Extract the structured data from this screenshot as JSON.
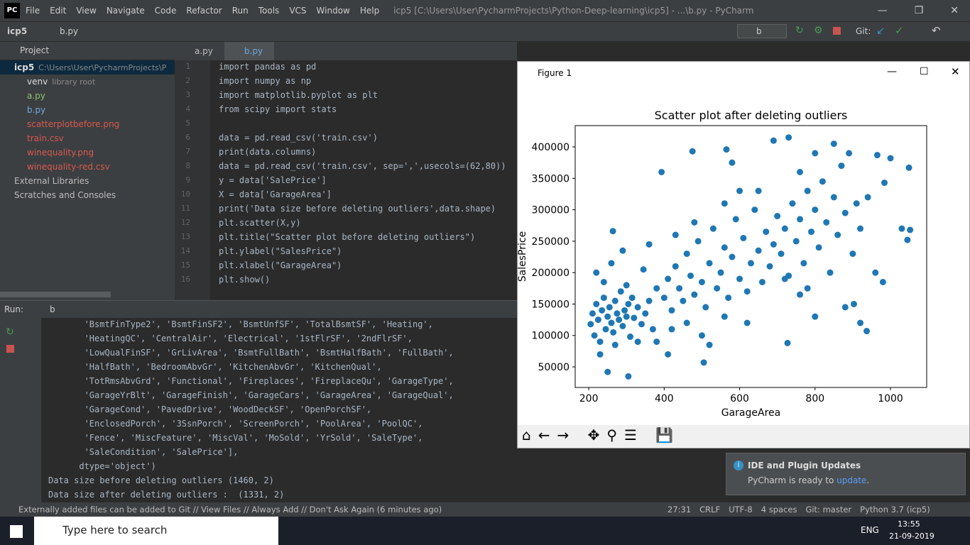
{
  "title_bar": {
    "menus": [
      "File",
      "Edit",
      "View",
      "Navigate",
      "Code",
      "Refactor",
      "Run",
      "Tools",
      "VCS",
      "Window",
      "Help"
    ],
    "title": "icp5 [C:\\Users\\User\\PycharmProjects\\Python-Deep-learning\\icp5] - ...\\b.py - PyCharm"
  },
  "nav_bar": {
    "project": "icp5",
    "file": "b.py",
    "run_config": "b",
    "git": "Git:"
  },
  "project_panel": {
    "title": "Project",
    "tree": [
      {
        "label": "icp5",
        "hint": "C:\\Users\\User\\PycharmProjects\\P",
        "color": "#dddddd"
      },
      {
        "label": "venv",
        "hint": "library root",
        "color": "#dddddd"
      },
      {
        "label": "a.py",
        "color": "#8fbf6f"
      },
      {
        "label": "b.py",
        "color": "#6fa8dc"
      },
      {
        "label": "scatterplotbefore.png",
        "color": "#d8584f"
      },
      {
        "label": "train.csv",
        "color": "#d8584f"
      },
      {
        "label": "winequality.png",
        "color": "#d8584f"
      },
      {
        "label": "winequality-red.csv",
        "color": "#d8584f"
      },
      {
        "label": "External Libraries",
        "color": "#bbbbbb"
      },
      {
        "label": "Scratches and Consoles",
        "color": "#bbbbbb"
      }
    ]
  },
  "editor": {
    "tabs": [
      "a.py",
      "b.py"
    ],
    "line_numbers": [
      1,
      2,
      3,
      4,
      5,
      6,
      7,
      8,
      9,
      10,
      11,
      12,
      13,
      14,
      15,
      16
    ],
    "lines": [
      "import pandas as pd",
      "import numpy as np",
      "import matplotlib.pyplot as plt",
      "from scipy import stats",
      null,
      "data = pd.read_csv('train.csv')",
      "print(data.columns)",
      "data = pd.read_csv('train.csv', sep=',',usecols=(62,80))",
      "y = data['SalePrice']",
      "X = data['GarageArea']",
      "print('Data size before deleting outliers',data.shape)",
      "plt.scatter(X,y)",
      "plt.title(\"Scatter plot before deleting outliers\")",
      "plt.ylabel(\"SalesPrice\")",
      "plt.xlabel(\"GarageArea\")",
      "plt.show()"
    ]
  },
  "run_panel": {
    "label": "Run:",
    "tab": "b",
    "output": [
      "       'BsmtFinType2', 'BsmtFinSF2', 'BsmtUnfSF', 'TotalBsmtSF', 'Heating',",
      "       'HeatingQC', 'CentralAir', 'Electrical', '1stFlrSF', '2ndFlrSF',",
      "       'LowQualFinSF', 'GrLivArea', 'BsmtFullBath', 'BsmtHalfBath', 'FullBath',",
      "       'HalfBath', 'BedroomAbvGr', 'KitchenAbvGr', 'KitchenQual',",
      "       'TotRmsAbvGrd', 'Functional', 'Fireplaces', 'FireplaceQu', 'GarageType',",
      "       'GarageYrBlt', 'GarageFinish', 'GarageCars', 'GarageArea', 'GarageQual',",
      "       'GarageCond', 'PavedDrive', 'WoodDeckSF', 'OpenPorchSF',",
      "       'EnclosedPorch', '3SsnPorch', 'ScreenPorch', 'PoolArea', 'PoolQC',",
      "       'Fence', 'MiscFeature', 'MiscVal', 'MoSold', 'YrSold', 'SaleType',",
      "       'SaleCondition', 'SalePrice'],",
      "      dtype='object')",
      "Data size before deleting outliers (1460, 2)",
      "Data size after deleting outliers :  (1331, 2)"
    ]
  },
  "figure": {
    "window_title": "Figure 1"
  },
  "chart_data": {
    "type": "scatter",
    "title": "Scatter plot after deleting outliers",
    "x_label": "GarageArea",
    "y_label": "SalesPrice",
    "color": "#1f77b4",
    "xlim": [
      164,
      1096
    ],
    "ylim": [
      17300,
      433900
    ],
    "xticks": [
      200,
      400,
      600,
      800,
      1000
    ],
    "yticks": [
      50000,
      100000,
      150000,
      200000,
      250000,
      300000,
      350000,
      400000
    ],
    "x": [
      205,
      210,
      215,
      220,
      225,
      230,
      235,
      240,
      245,
      250,
      255,
      260,
      265,
      270,
      275,
      280,
      285,
      290,
      295,
      300,
      305,
      310,
      315,
      320,
      330,
      340,
      350,
      360,
      370,
      380,
      220,
      240,
      260,
      290,
      300,
      345,
      360,
      230,
      270,
      330,
      250,
      305,
      264,
      400,
      410,
      420,
      430,
      440,
      450,
      460,
      470,
      480,
      490,
      500,
      510,
      520,
      530,
      540,
      550,
      560,
      570,
      580,
      590,
      600,
      610,
      620,
      630,
      640,
      650,
      660,
      670,
      680,
      690,
      700,
      420,
      460,
      500,
      520,
      505,
      560,
      620,
      600,
      560,
      475,
      565,
      580,
      650,
      690,
      730,
      430,
      480,
      393,
      380,
      410,
      710,
      720,
      730,
      740,
      750,
      760,
      770,
      780,
      790,
      800,
      810,
      820,
      830,
      840,
      850,
      860,
      870,
      880,
      890,
      900,
      910,
      920,
      940,
      960,
      727,
      937,
      903,
      880,
      800,
      760,
      1049,
      1000,
      965,
      984,
      1045,
      1030,
      1052,
      920,
      980,
      850,
      800,
      760,
      720,
      780
    ],
    "y": [
      118000,
      135000,
      100000,
      150000,
      125000,
      90000,
      140000,
      160000,
      110000,
      130000,
      145000,
      120000,
      105000,
      155000,
      135000,
      125000,
      170000,
      115000,
      140000,
      130000,
      150000,
      98000,
      160000,
      128000,
      145000,
      118000,
      135000,
      155000,
      110000,
      175000,
      200000,
      185000,
      215000,
      235000,
      180000,
      205000,
      245000,
      70000,
      85000,
      90000,
      42000,
      35000,
      266000,
      160000,
      190000,
      140000,
      210000,
      175000,
      155000,
      230000,
      195000,
      165000,
      250000,
      185000,
      145000,
      215000,
      270000,
      175000,
      200000,
      240000,
      160000,
      225000,
      285000,
      190000,
      255000,
      170000,
      215000,
      300000,
      235000,
      185000,
      265000,
      210000,
      245000,
      290000,
      110000,
      120000,
      100000,
      85000,
      57000,
      130000,
      120000,
      330000,
      310000,
      393000,
      396000,
      375000,
      330000,
      410000,
      415000,
      260000,
      280000,
      360000,
      90000,
      70000,
      230000,
      270000,
      195000,
      310000,
      250000,
      285000,
      215000,
      330000,
      265000,
      300000,
      240000,
      345000,
      280000,
      200000,
      320000,
      260000,
      370000,
      295000,
      390000,
      230000,
      310000,
      270000,
      320000,
      200000,
      88000,
      107000,
      150000,
      145000,
      130000,
      165000,
      367000,
      382000,
      387000,
      343000,
      252000,
      270000,
      268000,
      120000,
      185000,
      405000,
      390000,
      360000,
      190000,
      175000
    ]
  },
  "notification": {
    "title": "IDE and Plugin Updates",
    "text": "PyCharm is ready to",
    "link": "update",
    "end": "."
  },
  "status_bar": {
    "message": "Externally added files can be added to Git // View Files // Always Add // Don't Ask Again (6 minutes ago)",
    "items": [
      "27:31",
      "CRLF",
      "UTF-8",
      "4 spaces",
      "Git: master",
      "Python 3.7 (icp5)"
    ]
  },
  "taskbar": {
    "search": "Type here to search",
    "lang": "ENG",
    "time": "13:55",
    "date": "21-09-2019"
  }
}
